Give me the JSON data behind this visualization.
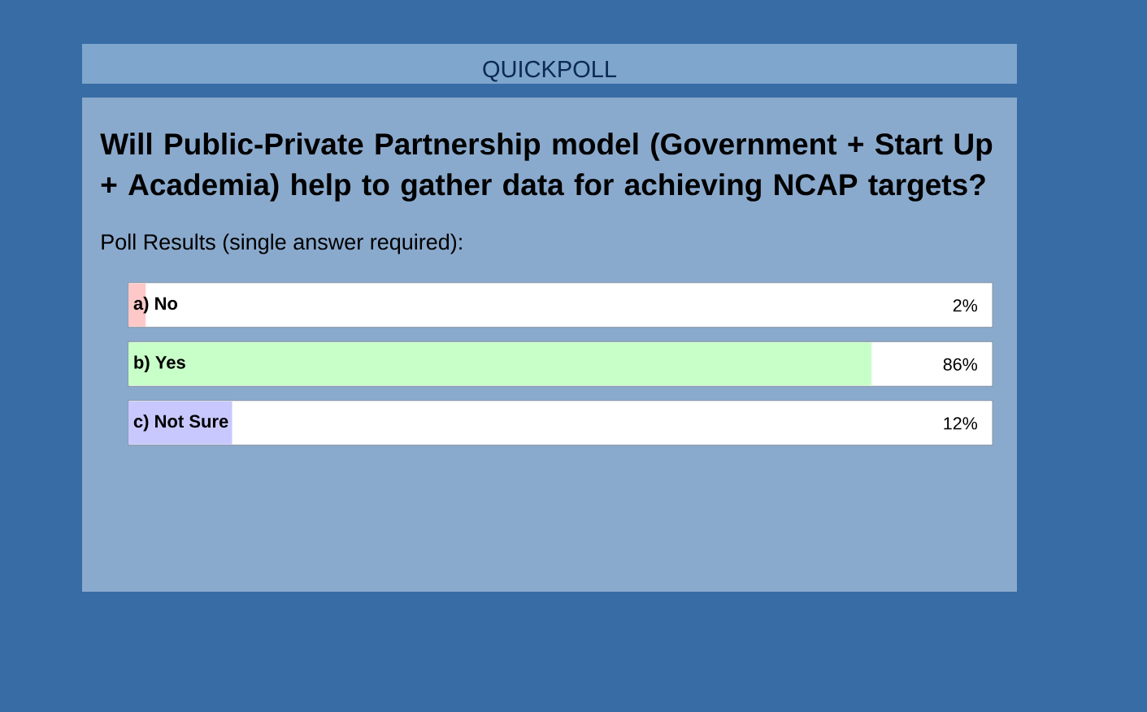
{
  "chart_data": {
    "type": "bar",
    "orientation": "horizontal",
    "title": "QUICKPOLL",
    "subtitle": "Will Public-Private Partnership model (Government + Start Up + Academia) help to gather data for achieving NCAP targets?",
    "annotations": [
      "Poll Results (single answer required):"
    ],
    "categories": [
      "a) No",
      "b) Yes",
      "c) Not Sure"
    ],
    "values": [
      2,
      86,
      12
    ],
    "colors": [
      "#ffc8c8",
      "#c8ffc8",
      "#c8c8ff"
    ],
    "value_labels": [
      "2%",
      "86%",
      "12%"
    ],
    "xlim": [
      0,
      100
    ]
  }
}
